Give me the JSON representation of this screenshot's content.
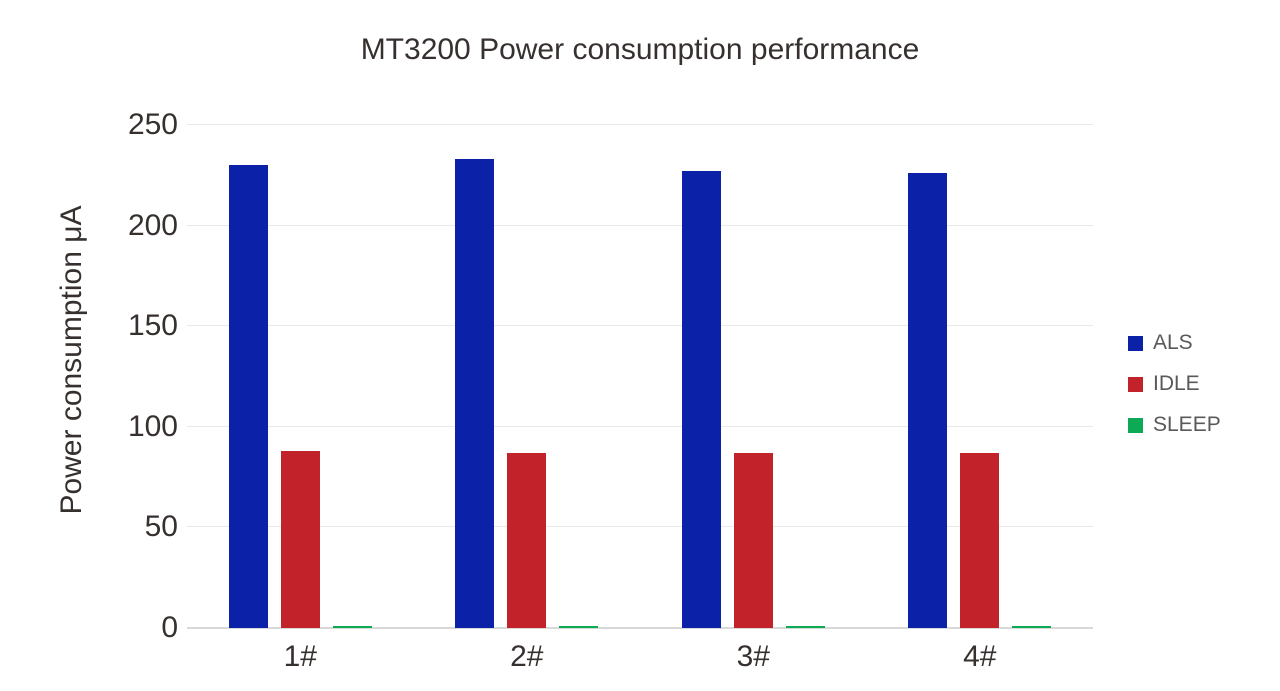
{
  "chart_data": {
    "type": "bar",
    "title": "MT3200 Power consumption performance",
    "xlabel": "",
    "ylabel": "Power consumption μA",
    "categories": [
      "1#",
      "2#",
      "3#",
      "4#"
    ],
    "series": [
      {
        "name": "ALS",
        "color": "#0b21a8",
        "values": [
          230,
          233,
          227,
          226
        ]
      },
      {
        "name": "IDLE",
        "color": "#c2232a",
        "values": [
          88,
          87,
          87,
          87
        ]
      },
      {
        "name": "SLEEP",
        "color": "#0caa55",
        "values": [
          1,
          1,
          1,
          1
        ]
      }
    ],
    "ylim": [
      0,
      250
    ],
    "yticks": [
      0,
      50,
      100,
      150,
      200,
      250
    ],
    "grid": true,
    "legend_position": "right"
  },
  "colors": {
    "background": "#ffffff",
    "gridline": "#e9e9e9",
    "axis_line": "#d9d9d9",
    "text": "#36302e",
    "legend_text": "#595959"
  }
}
